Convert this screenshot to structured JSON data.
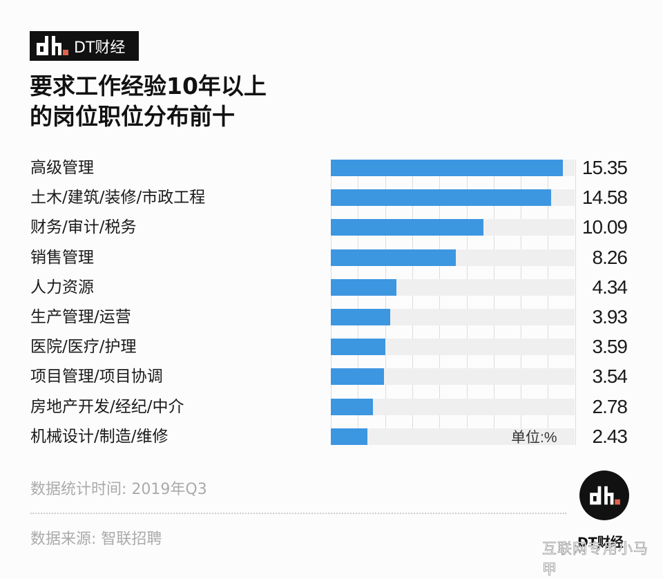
{
  "brand": {
    "name": "DT财经",
    "logo_icon": "dt-logo-icon",
    "accent_color": "#e0624e"
  },
  "title": {
    "line1": "要求工作经验10年以上",
    "line2": "的岗位职位分布前十"
  },
  "unit_label": "单位:%",
  "footer": {
    "stat_time": "数据统计时间: 2019年Q3",
    "source": "数据来源: 智联招聘",
    "logo_text": "DT财经"
  },
  "watermark": "互联网专用小马甲",
  "colors": {
    "bar": "#3d96e0",
    "track": "#efefef",
    "grid": "#dcdcdc"
  },
  "chart_data": {
    "type": "bar",
    "orientation": "horizontal",
    "title": "要求工作经验10年以上的岗位职位分布前十",
    "xlabel": "",
    "ylabel": "",
    "unit": "%",
    "xlim": [
      0,
      18
    ],
    "grid": true,
    "categories": [
      "高级管理",
      "土木/建筑/装修/市政工程",
      "财务/审计/税务",
      "销售管理",
      "人力资源",
      "生产管理/运营",
      "医院/医疗/护理",
      "项目管理/项目协调",
      "房地产开发/经纪/中介",
      "机械设计/制造/维修"
    ],
    "values": [
      15.35,
      14.58,
      10.09,
      8.26,
      4.34,
      3.93,
      3.59,
      3.54,
      2.78,
      2.43
    ],
    "value_labels": [
      "15.35",
      "14.58",
      "10.09",
      "8.26",
      "4.34",
      "3.93",
      "3.59",
      "3.54",
      "2.78",
      "2.43"
    ]
  }
}
